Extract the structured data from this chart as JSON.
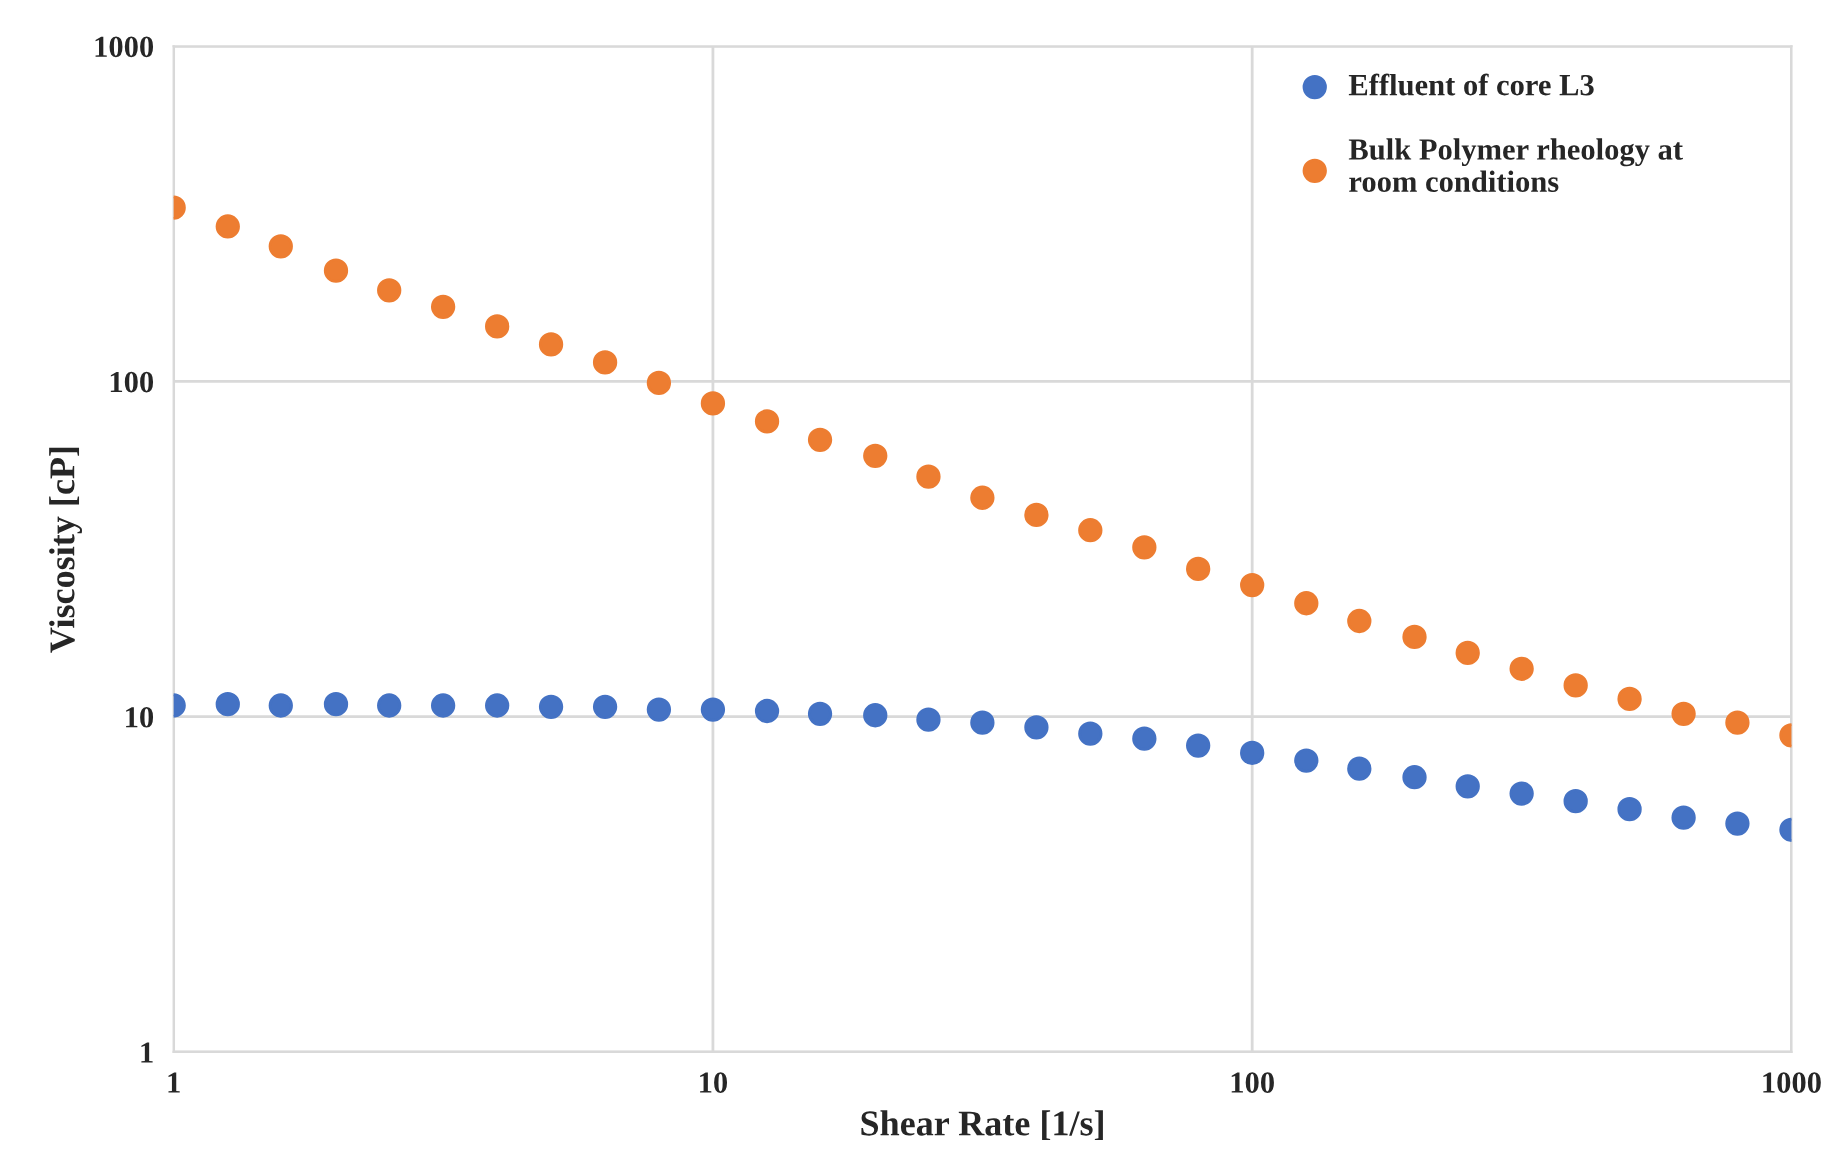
{
  "chart_data": {
    "type": "scatter",
    "xlabel": "Shear Rate [1/s]",
    "ylabel": "Viscosity [cP]",
    "log": "xy",
    "xlim": [
      1,
      1000
    ],
    "ylim": [
      1,
      1000
    ],
    "xticks": [
      1,
      10,
      100,
      1000
    ],
    "yticks": [
      1,
      10,
      100,
      1000
    ],
    "grid": true,
    "legend": "top right",
    "marker": "circle",
    "x": [
      1,
      1.26,
      1.58,
      2,
      2.51,
      3.16,
      3.98,
      5.01,
      6.31,
      7.94,
      10,
      12.6,
      15.8,
      20,
      25.1,
      31.6,
      39.8,
      50.1,
      63.1,
      79.4,
      100,
      126,
      158,
      200,
      251,
      316,
      398,
      501,
      631,
      794,
      1000
    ],
    "series": [
      {
        "name": "Effluent of core L3",
        "color": "#4472c4",
        "values": [
          10.8,
          10.9,
          10.8,
          10.9,
          10.8,
          10.8,
          10.8,
          10.7,
          10.7,
          10.5,
          10.5,
          10.4,
          10.2,
          10.1,
          9.8,
          9.6,
          9.3,
          8.9,
          8.6,
          8.2,
          7.8,
          7.4,
          7.0,
          6.6,
          6.2,
          5.9,
          5.6,
          5.3,
          5.0,
          4.8,
          4.6
        ]
      },
      {
        "name": "Bulk Polymer rheology at\nroom conditions",
        "color": "#ed7d31",
        "values": [
          330,
          290,
          253,
          214,
          187,
          167,
          146,
          129,
          114,
          99,
          86,
          76,
          67,
          60,
          52,
          45,
          40,
          36,
          32,
          27.6,
          24.7,
          21.8,
          19.3,
          17.3,
          15.5,
          13.9,
          12.4,
          11.3,
          10.2,
          9.6,
          8.8
        ]
      }
    ]
  }
}
